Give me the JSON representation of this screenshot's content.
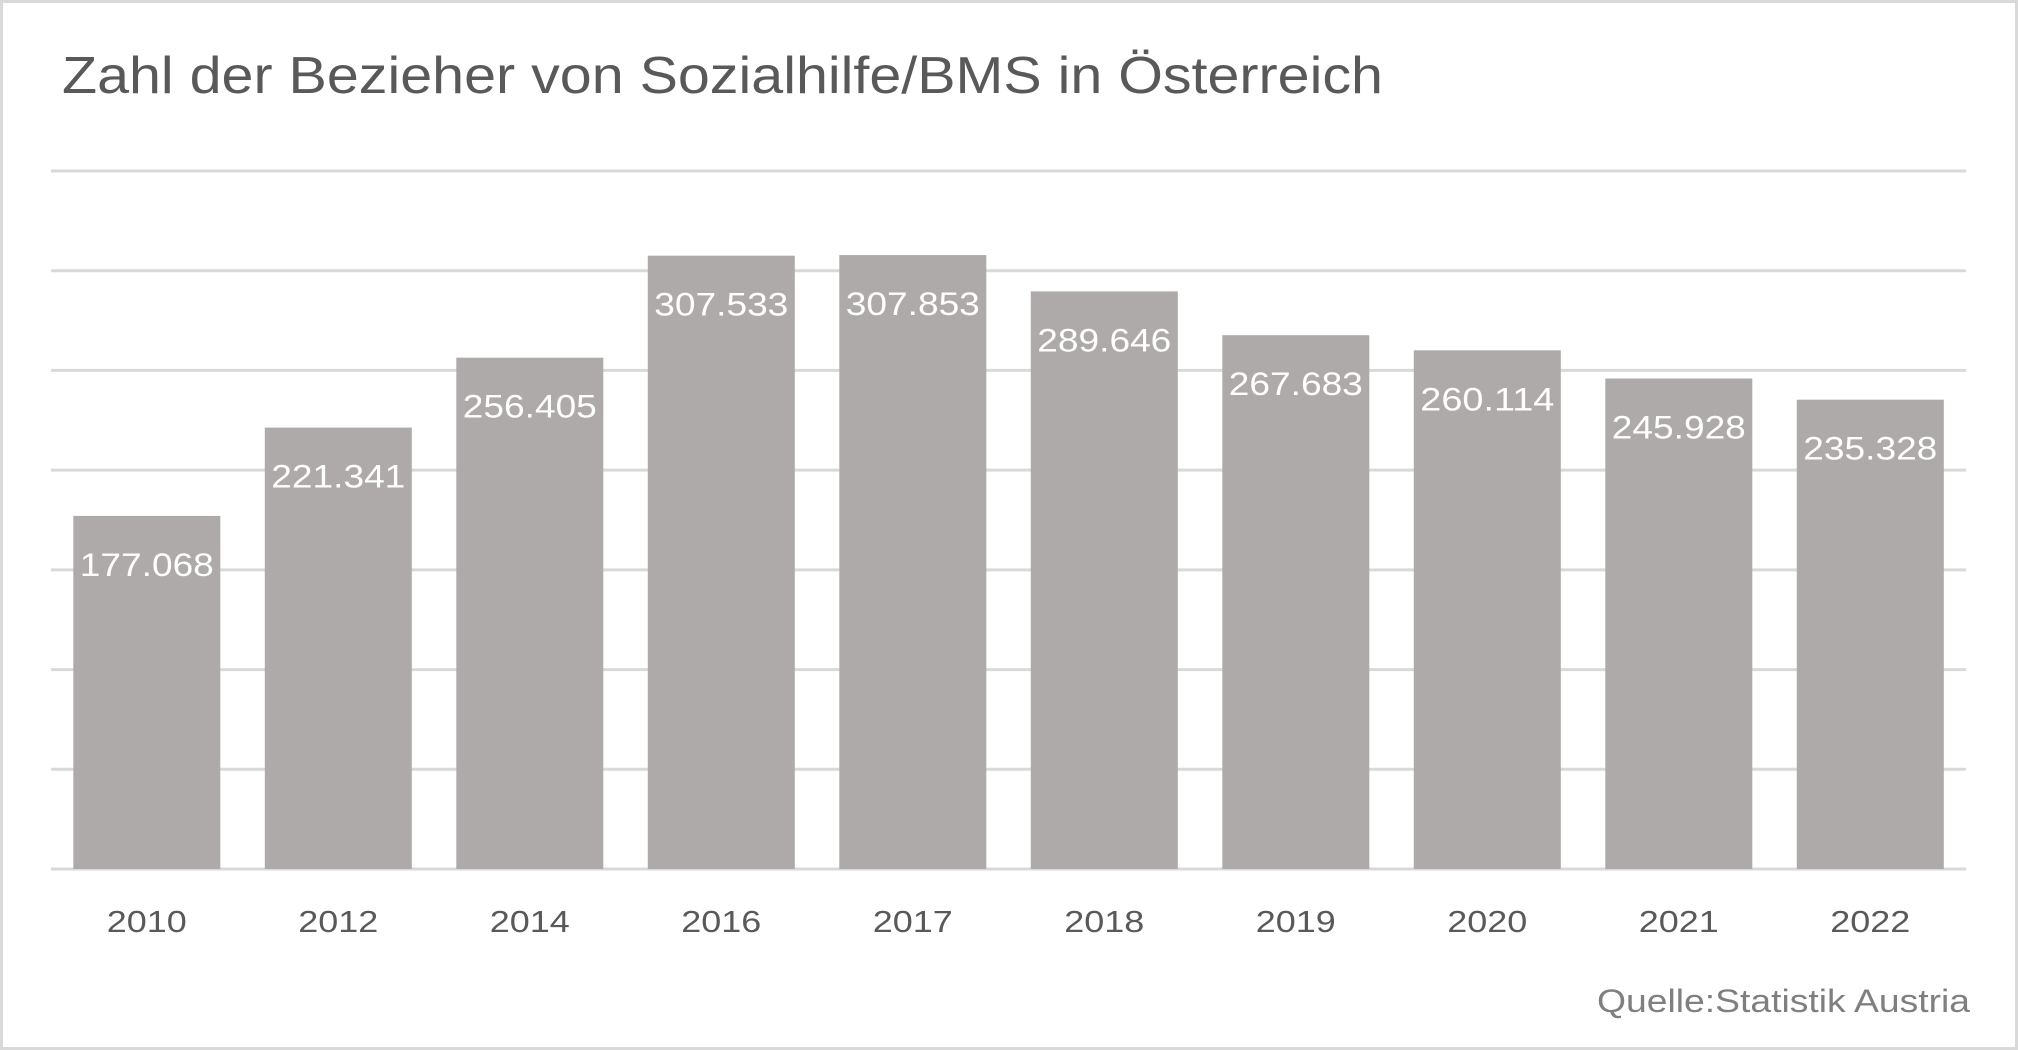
{
  "chart_data": {
    "type": "bar",
    "title": "Zahl der Bezieher von Sozialhilfe/BMS in Österreich",
    "xlabel": "",
    "ylabel": "",
    "categories": [
      "2010",
      "2012",
      "2014",
      "2016",
      "2017",
      "2018",
      "2019",
      "2020",
      "2021",
      "2022"
    ],
    "values": [
      177068,
      221341,
      256405,
      307533,
      307853,
      289646,
      267683,
      260114,
      245928,
      235328
    ],
    "data_labels": [
      "177.068",
      "221.341",
      "256.405",
      "307.533",
      "307.853",
      "289.646",
      "267.683",
      "260.114",
      "245.928",
      "235.328"
    ],
    "ylim": [
      0,
      350000
    ],
    "y_gridline_step": 50000,
    "y_tick_labels_visible": false,
    "grid": true,
    "legend": "none",
    "bar_color": "#aeaaaa",
    "data_label_color": "#ffffff",
    "source_note": "Quelle:Statistik Austria"
  }
}
